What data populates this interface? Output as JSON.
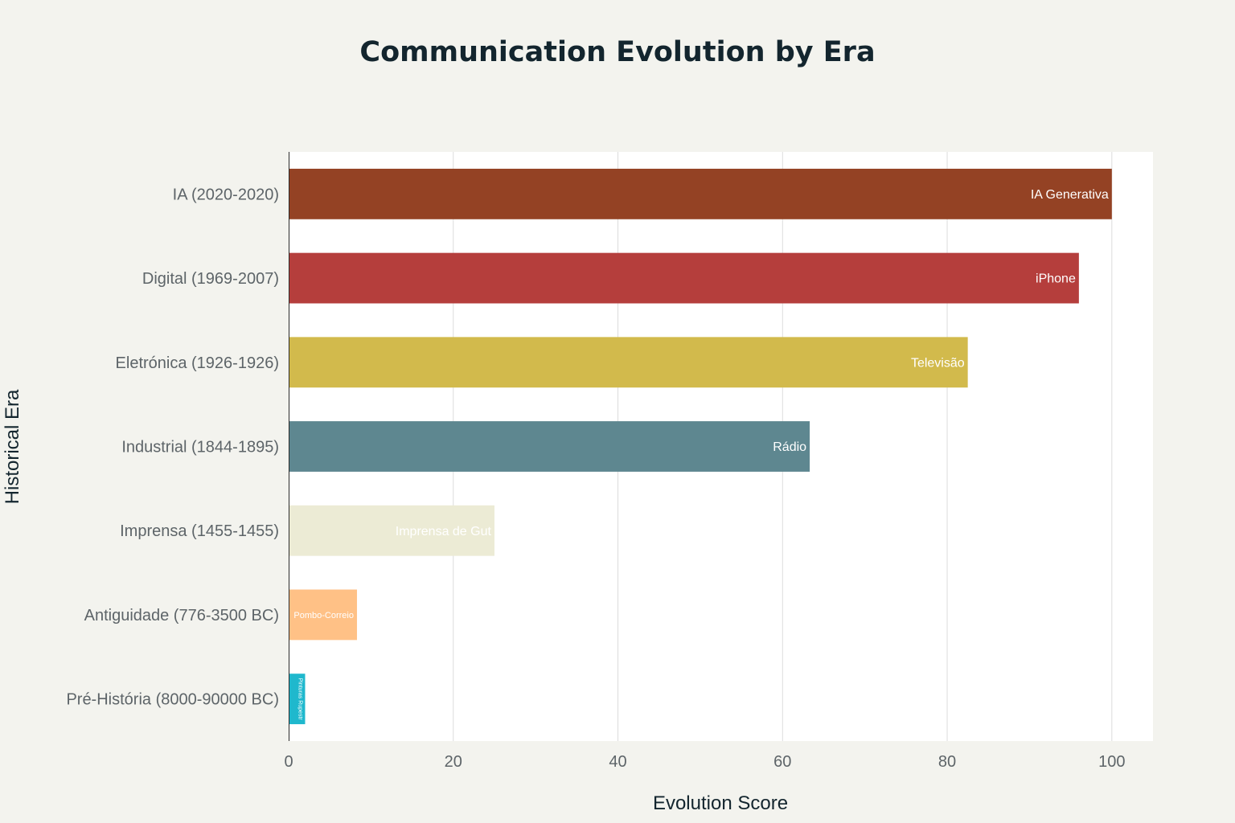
{
  "chart_data": {
    "type": "bar",
    "orientation": "horizontal",
    "title": "Communication Evolution by Era",
    "xlabel": "Evolution Score",
    "ylabel": "Historical Era",
    "xlim": [
      0,
      105
    ],
    "xticks": [
      0,
      20,
      40,
      60,
      80,
      100
    ],
    "grid": true,
    "categories": [
      "IA (2020-2020)",
      "Digital (1969-2007)",
      "Eletrónica (1926-1926)",
      "Industrial (1844-1895)",
      "Imprensa (1455-1455)",
      "Antiguidade (776-3500 BC)",
      "Pré-História (8000-90000 BC)"
    ],
    "values": [
      100,
      96,
      82.5,
      63.3,
      25,
      8.3,
      2
    ],
    "bar_labels": [
      "IA Generativa",
      "iPhone",
      "Televisão",
      "Rádio",
      "Imprensa de Gut",
      "Pombo-Correio",
      "Pinturas Rupestr"
    ],
    "colors": [
      "#944224",
      "#b53e3c",
      "#d2ba4c",
      "#5e8790",
      "#ecebd5",
      "#ffc186",
      "#1fb8cd"
    ]
  }
}
